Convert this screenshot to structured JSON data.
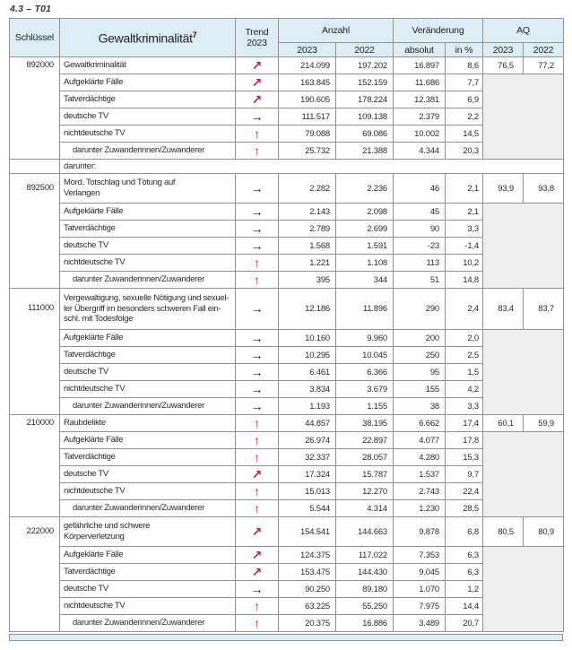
{
  "page_label": "4.3 – T01",
  "colors": {
    "header_bg": "#ddedf6",
    "aq_merged_bg": "#efefef",
    "border": "#919191",
    "footer_bg": "#ddedf6"
  },
  "trend_styles": {
    "up-right": {
      "glyph": "↗",
      "color": "#c2156c"
    },
    "right": {
      "glyph": "→",
      "color": "#1a1a1a"
    },
    "up": {
      "glyph": "↑",
      "color": "#e8232a"
    }
  },
  "header": {
    "schluessel": "Schlüssel",
    "title": "Gewaltkriminalität",
    "title_sup": "7",
    "trend": "Trend\n2023",
    "anzahl": "Anzahl",
    "veraenderung": "Veränderung",
    "aq": "AQ",
    "y2023": "2023",
    "y2022": "2022",
    "absolut": "absolut",
    "in_pct": "in %"
  },
  "blocks": [
    {
      "key": "892000",
      "rows": [
        {
          "label": "Gewaltkriminalität",
          "trend": "up-right",
          "n2023": "214.099",
          "n2022": "197.202",
          "absolut": "16.897",
          "in_pct": "8,6",
          "aq2023": "76,5",
          "aq2022": "77,2"
        },
        {
          "label": "Aufgeklärte Fälle",
          "trend": "up-right",
          "n2023": "163.845",
          "n2022": "152.159",
          "absolut": "11.686",
          "in_pct": "7,7"
        },
        {
          "label": "Tatverdächtige",
          "trend": "up-right",
          "n2023": "190.605",
          "n2022": "178.224",
          "absolut": "12.381",
          "in_pct": "6,9"
        },
        {
          "label": "deutsche TV",
          "trend": "right",
          "n2023": "111.517",
          "n2022": "109.138",
          "absolut": "2.379",
          "in_pct": "2,2"
        },
        {
          "label": "nichtdeutsche TV",
          "trend": "up",
          "n2023": "79.088",
          "n2022": "69.086",
          "absolut": "10.002",
          "in_pct": "14,5"
        },
        {
          "label": "darunter Zuwanderinnen/Zuwanderer",
          "indent": true,
          "trend": "up",
          "n2023": "25.732",
          "n2022": "21.388",
          "absolut": "4.344",
          "in_pct": "20,3"
        }
      ]
    },
    {
      "key": "892500",
      "section_label": "darunter:",
      "rows": [
        {
          "label": "Mord, Totschlag und Tötung auf\nVerlangen",
          "trend": "right",
          "n2023": "2.282",
          "n2022": "2.236",
          "absolut": "46",
          "in_pct": "2,1",
          "aq2023": "93,9",
          "aq2022": "93,8"
        },
        {
          "label": "Aufgeklärte Fälle",
          "trend": "right",
          "n2023": "2.143",
          "n2022": "2.098",
          "absolut": "45",
          "in_pct": "2,1"
        },
        {
          "label": "Tatverdächtige",
          "trend": "right",
          "n2023": "2.789",
          "n2022": "2.699",
          "absolut": "90",
          "in_pct": "3,3"
        },
        {
          "label": "deutsche TV",
          "trend": "right",
          "n2023": "1.568",
          "n2022": "1.591",
          "absolut": "-23",
          "in_pct": "-1,4"
        },
        {
          "label": "nichtdeutsche TV",
          "trend": "up",
          "n2023": "1.221",
          "n2022": "1.108",
          "absolut": "113",
          "in_pct": "10,2"
        },
        {
          "label": "darunter Zuwanderinnen/Zuwanderer",
          "indent": true,
          "trend": "up",
          "n2023": "395",
          "n2022": "344",
          "absolut": "51",
          "in_pct": "14,8"
        }
      ]
    },
    {
      "key": "111000",
      "rows": [
        {
          "label": "Vergewaltigung, sexuelle Nötigung und sexuel-\nler Übergriff im besonders schweren Fall ein-\nschl. mit Todesfolge",
          "trend": "right",
          "n2023": "12.186",
          "n2022": "11.896",
          "absolut": "290",
          "in_pct": "2,4",
          "aq2023": "83,4",
          "aq2022": "83,7"
        },
        {
          "label": "Aufgeklärte Fälle",
          "trend": "right",
          "n2023": "10.160",
          "n2022": "9.960",
          "absolut": "200",
          "in_pct": "2,0"
        },
        {
          "label": "Tatverdächtige",
          "trend": "right",
          "n2023": "10.295",
          "n2022": "10.045",
          "absolut": "250",
          "in_pct": "2,5"
        },
        {
          "label": "deutsche TV",
          "trend": "right",
          "n2023": "6.461",
          "n2022": "6.366",
          "absolut": "95",
          "in_pct": "1,5"
        },
        {
          "label": "nichtdeutsche TV",
          "trend": "right",
          "n2023": "3.834",
          "n2022": "3.679",
          "absolut": "155",
          "in_pct": "4,2"
        },
        {
          "label": "darunter Zuwanderinnen/Zuwanderer",
          "indent": true,
          "trend": "right",
          "n2023": "1.193",
          "n2022": "1.155",
          "absolut": "38",
          "in_pct": "3,3"
        }
      ]
    },
    {
      "key": "210000",
      "rows": [
        {
          "label": "Raubdelikte",
          "trend": "up",
          "n2023": "44.857",
          "n2022": "38.195",
          "absolut": "6.662",
          "in_pct": "17,4",
          "aq2023": "60,1",
          "aq2022": "59,9"
        },
        {
          "label": "Aufgeklärte Fälle",
          "trend": "up",
          "n2023": "26.974",
          "n2022": "22.897",
          "absolut": "4.077",
          "in_pct": "17,8"
        },
        {
          "label": "Tatverdächtige",
          "trend": "up",
          "n2023": "32.337",
          "n2022": "28.057",
          "absolut": "4.280",
          "in_pct": "15,3"
        },
        {
          "label": "deutsche TV",
          "trend": "up-right",
          "n2023": "17.324",
          "n2022": "15.787",
          "absolut": "1.537",
          "in_pct": "9,7"
        },
        {
          "label": "nichtdeutsche TV",
          "trend": "up",
          "n2023": "15.013",
          "n2022": "12.270",
          "absolut": "2.743",
          "in_pct": "22,4"
        },
        {
          "label": "darunter Zuwanderinnen/Zuwanderer",
          "indent": true,
          "trend": "up",
          "n2023": "5.544",
          "n2022": "4.314",
          "absolut": "1.230",
          "in_pct": "28,5"
        }
      ]
    },
    {
      "key": "222000",
      "rows": [
        {
          "label": "gefährliche und schwere\nKörperverletzung",
          "trend": "up-right",
          "n2023": "154.541",
          "n2022": "144.663",
          "absolut": "9.878",
          "in_pct": "6,8",
          "aq2023": "80,5",
          "aq2022": "80,9"
        },
        {
          "label": "Aufgeklärte Fälle",
          "trend": "up-right",
          "n2023": "124.375",
          "n2022": "117.022",
          "absolut": "7.353",
          "in_pct": "6,3"
        },
        {
          "label": "Tatverdächtige",
          "trend": "up-right",
          "n2023": "153.475",
          "n2022": "144.430",
          "absolut": "9.045",
          "in_pct": "6,3"
        },
        {
          "label": "deutsche TV",
          "trend": "right",
          "n2023": "90.250",
          "n2022": "89.180",
          "absolut": "1.070",
          "in_pct": "1,2"
        },
        {
          "label": "nichtdeutsche TV",
          "trend": "up",
          "n2023": "63.225",
          "n2022": "55.250",
          "absolut": "7.975",
          "in_pct": "14,4"
        },
        {
          "label": "darunter Zuwanderinnen/Zuwanderer",
          "indent": true,
          "trend": "up",
          "n2023": "20.375",
          "n2022": "16.886",
          "absolut": "3.489",
          "in_pct": "20,7"
        }
      ]
    }
  ]
}
